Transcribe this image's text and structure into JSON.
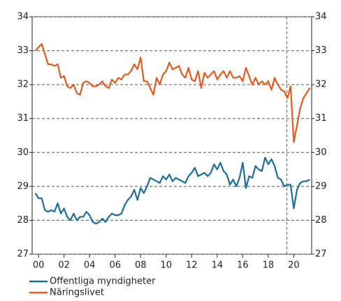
{
  "chart_data": {
    "type": "line",
    "x": [
      1999.75,
      2000,
      2000.25,
      2000.5,
      2000.75,
      2001,
      2001.25,
      2001.5,
      2001.75,
      2002,
      2002.25,
      2002.5,
      2002.75,
      2003,
      2003.25,
      2003.5,
      2003.75,
      2004,
      2004.25,
      2004.5,
      2004.75,
      2005,
      2005.25,
      2005.5,
      2005.75,
      2006,
      2006.25,
      2006.5,
      2006.75,
      2007,
      2007.25,
      2007.5,
      2007.75,
      2008,
      2008.25,
      2008.5,
      2008.75,
      2009,
      2009.25,
      2009.5,
      2009.75,
      2010,
      2010.25,
      2010.5,
      2010.75,
      2011,
      2011.25,
      2011.5,
      2011.75,
      2012,
      2012.25,
      2012.5,
      2012.75,
      2013,
      2013.25,
      2013.5,
      2013.75,
      2014,
      2014.25,
      2014.5,
      2014.75,
      2015,
      2015.25,
      2015.5,
      2015.75,
      2016,
      2016.25,
      2016.5,
      2016.75,
      2017,
      2017.25,
      2017.5,
      2017.75,
      2018,
      2018.25,
      2018.5,
      2018.75,
      2019,
      2019.25,
      2019.5,
      2019.75,
      2020,
      2020.25,
      2020.5,
      2020.75,
      2021,
      2021.25
    ],
    "series": [
      {
        "name": "Offentliga myndigheter",
        "color": "#1a6e99",
        "values": [
          28.8,
          28.65,
          28.65,
          28.3,
          28.25,
          28.3,
          28.25,
          28.5,
          28.2,
          28.35,
          28.1,
          28.0,
          28.2,
          28.0,
          28.1,
          28.1,
          28.25,
          28.15,
          27.95,
          27.9,
          27.95,
          28.05,
          27.95,
          28.1,
          28.2,
          28.15,
          28.15,
          28.2,
          28.45,
          28.6,
          28.7,
          28.9,
          28.6,
          28.95,
          28.8,
          29.0,
          29.25,
          29.2,
          29.15,
          29.1,
          29.3,
          29.2,
          29.35,
          29.15,
          29.25,
          29.2,
          29.15,
          29.1,
          29.3,
          29.4,
          29.55,
          29.3,
          29.35,
          29.4,
          29.3,
          29.4,
          29.65,
          29.5,
          29.7,
          29.45,
          29.35,
          29.05,
          29.2,
          29.0,
          29.25,
          29.7,
          28.95,
          29.3,
          29.25,
          29.6,
          29.5,
          29.45,
          29.85,
          29.65,
          29.8,
          29.6,
          29.25,
          29.2,
          29.0,
          29.05,
          29.05,
          28.35,
          28.9,
          29.1,
          29.15,
          29.15,
          29.2
        ]
      },
      {
        "name": "Näringslivet",
        "color": "#e8591d",
        "values": [
          33.0,
          33.1,
          33.2,
          32.9,
          32.6,
          32.6,
          32.55,
          32.6,
          32.2,
          32.25,
          31.95,
          31.9,
          32.0,
          31.75,
          31.7,
          32.05,
          32.1,
          32.05,
          31.95,
          31.95,
          32.0,
          32.1,
          31.95,
          31.9,
          32.15,
          32.05,
          32.2,
          32.15,
          32.3,
          32.3,
          32.4,
          32.6,
          32.45,
          32.8,
          32.1,
          32.1,
          31.9,
          31.7,
          32.2,
          32.0,
          32.3,
          32.4,
          32.65,
          32.45,
          32.5,
          32.55,
          32.3,
          32.2,
          32.5,
          32.15,
          32.1,
          32.4,
          31.9,
          32.35,
          32.2,
          32.3,
          32.4,
          32.15,
          32.3,
          32.4,
          32.2,
          32.4,
          32.2,
          32.2,
          32.25,
          32.1,
          32.5,
          32.25,
          32.0,
          32.2,
          32.0,
          32.1,
          32.0,
          32.1,
          31.85,
          32.2,
          32.0,
          31.85,
          31.8,
          31.6,
          31.95,
          30.3,
          30.8,
          31.3,
          31.6,
          31.75,
          31.9
        ]
      }
    ],
    "xlim": [
      1999.5,
      2021.4
    ],
    "xticks": [
      {
        "value": 2000,
        "label": "00"
      },
      {
        "value": 2002,
        "label": "02"
      },
      {
        "value": 2004,
        "label": "04"
      },
      {
        "value": 2006,
        "label": "06"
      },
      {
        "value": 2008,
        "label": "08"
      },
      {
        "value": 2010,
        "label": "10"
      },
      {
        "value": 2012,
        "label": "12"
      },
      {
        "value": 2014,
        "label": "14"
      },
      {
        "value": 2016,
        "label": "16"
      },
      {
        "value": 2018,
        "label": "18"
      },
      {
        "value": 2020,
        "label": "20"
      }
    ],
    "ylim": [
      27,
      34
    ],
    "yticks": [
      27,
      28,
      29,
      30,
      31,
      32,
      33,
      34
    ],
    "y2lim": [
      27,
      34
    ],
    "y2ticks": [
      27,
      28,
      29,
      30,
      31,
      32,
      33,
      34
    ],
    "vline": 2019.45,
    "grid": true,
    "legend": "bottom"
  }
}
